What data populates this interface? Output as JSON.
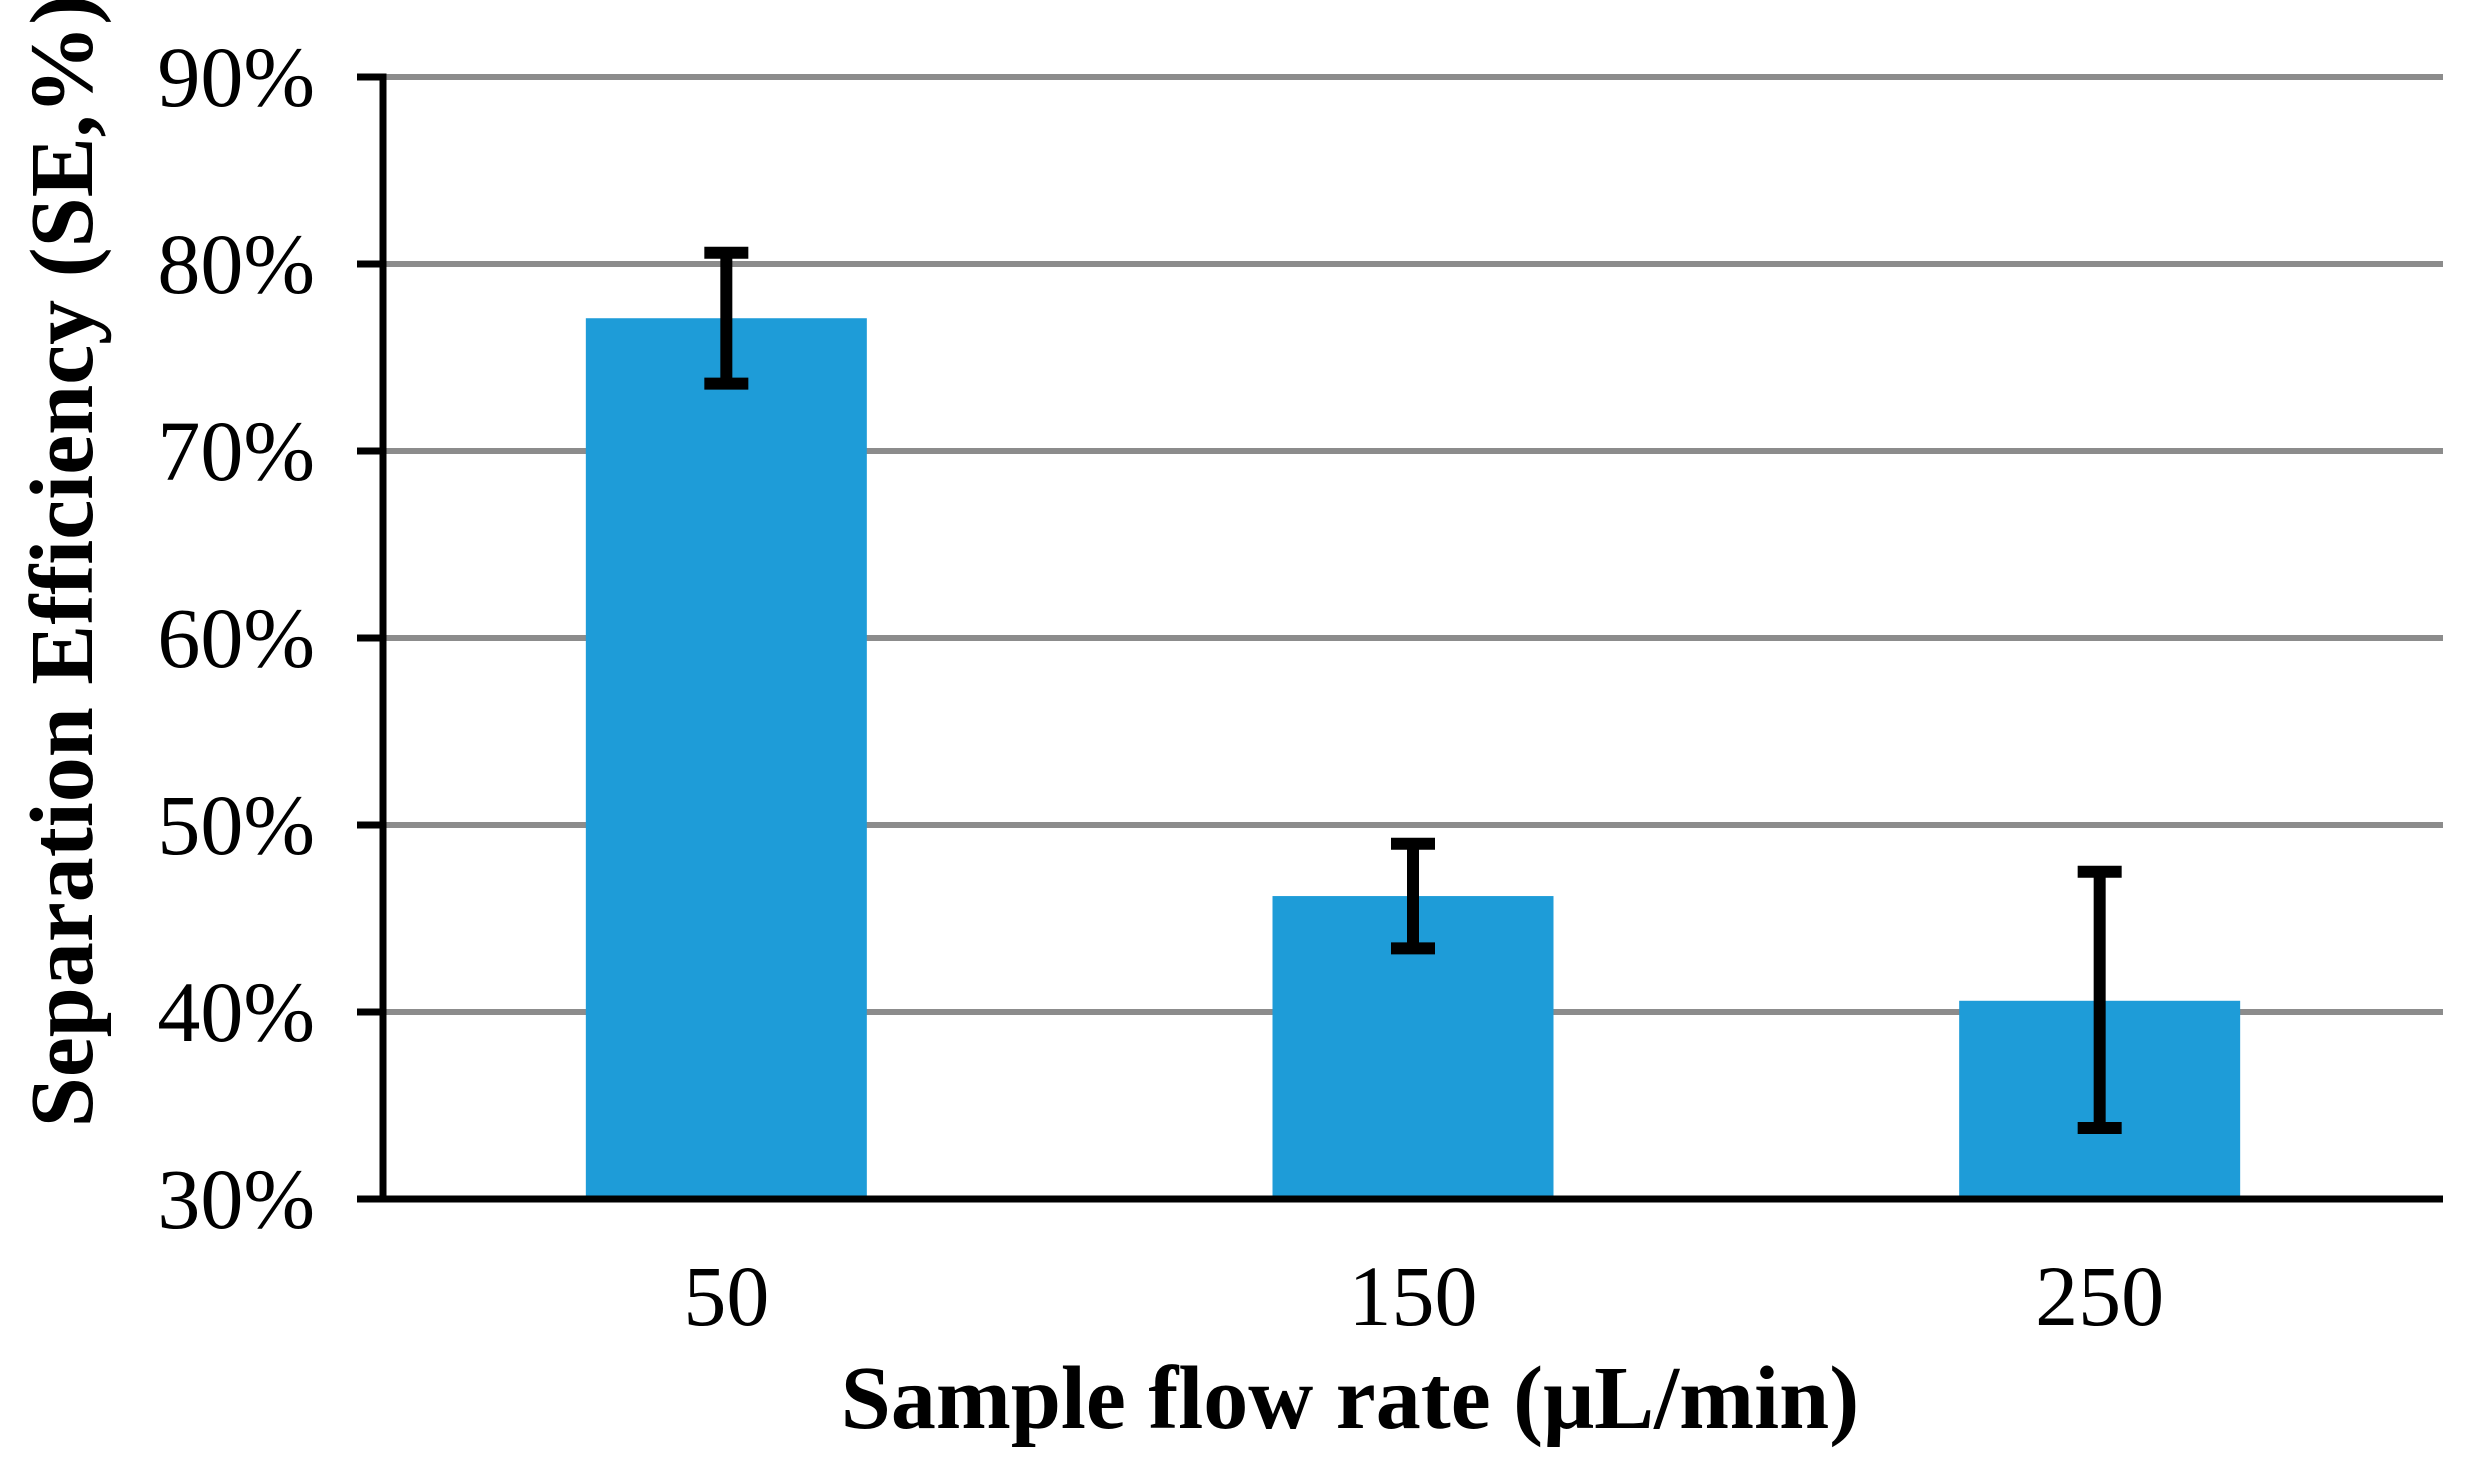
{
  "chart_data": {
    "type": "bar",
    "title": "",
    "xlabel": "Sample flow rate (μL/min)",
    "ylabel": "Separation Efficiency (SE,%)",
    "categories": [
      "50",
      "150",
      "250"
    ],
    "values": [
      77.1,
      46.2,
      40.6
    ],
    "error_plus": [
      3.5,
      2.8,
      6.9
    ],
    "error_minus": [
      3.5,
      2.8,
      6.8
    ],
    "y_tick_labels": [
      "90%",
      "80%",
      "70%",
      "60%",
      "50%",
      "40%",
      "30%"
    ],
    "y_tick_values": [
      90,
      80,
      70,
      60,
      50,
      40,
      30
    ],
    "ylim": [
      30,
      90
    ],
    "grid": "horizontal gridlines on, legend none",
    "bar_color": "#1E9CD8",
    "gridline_color": "#8C8C8C",
    "axis_color": "#000000",
    "error_bar_color": "#000000",
    "background_color": "#FFFFFF"
  }
}
